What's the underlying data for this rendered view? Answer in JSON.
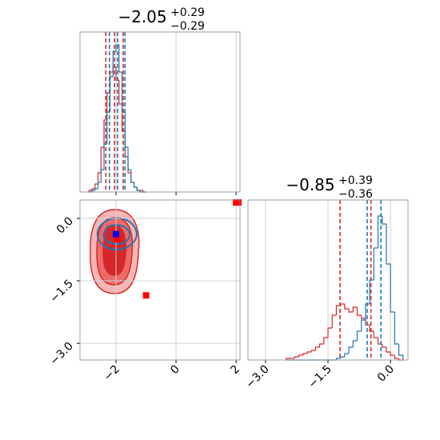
{
  "chart_data": [
    {
      "type": "histogram",
      "title": "−2.05",
      "title_plus": "+0.29",
      "title_minus": "−0.29",
      "xlim": [
        -3.2,
        2.13
      ],
      "ylim": [
        0,
        100
      ],
      "xticks": [
        -2,
        0,
        2
      ],
      "grid": true,
      "bins": [
        -2.9,
        -2.8,
        -2.7,
        -2.6,
        -2.5,
        -2.4,
        -2.3,
        -2.2,
        -2.1,
        -2.0,
        -1.9,
        -1.8,
        -1.7,
        -1.6,
        -1.5,
        -1.4,
        -1.3,
        -1.2,
        -1.1,
        -1.0
      ],
      "series": [
        {
          "color": "#d62728",
          "values": [
            1,
            2,
            5,
            12,
            28,
            45,
            62,
            75,
            78,
            70,
            55,
            38,
            22,
            12,
            6,
            3,
            1,
            1,
            0
          ],
          "quantiles": [
            -2.34,
            -2.05,
            -1.76
          ]
        },
        {
          "color": "#1f77b4",
          "values": [
            0,
            1,
            2,
            6,
            14,
            30,
            50,
            72,
            88,
            92,
            75,
            50,
            28,
            14,
            6,
            3,
            1,
            0,
            0
          ],
          "quantiles": [
            -2.22,
            -1.95,
            -1.7
          ]
        }
      ]
    },
    {
      "type": "scatter",
      "xlim": [
        -3.2,
        2.13
      ],
      "ylim": [
        -3.4,
        0.44
      ],
      "grid": true,
      "xticks": [
        {
          "value": -2,
          "label": "−2"
        },
        0,
        2
      ],
      "yticks": [
        {
          "value": 0,
          "label": "0.0"
        },
        {
          "value": -1.5,
          "label": "−1.5"
        },
        {
          "value": -3,
          "label": "−3.0"
        }
      ],
      "series": [
        {
          "color": "#ff0000",
          "x": [
            -1.0,
            2.0,
            2.08,
            -1.95
          ],
          "y": [
            -1.85,
            0.38,
            0.38,
            -0.5
          ]
        },
        {
          "color": "#0000ff",
          "x": [
            -2.0
          ],
          "y": [
            -0.38
          ]
        }
      ]
    },
    {
      "type": "histogram",
      "title": "−0.85",
      "title_plus": "+0.39",
      "title_minus": "−0.36",
      "xlim": [
        -3.42,
        0.42
      ],
      "ylim": [
        0,
        100
      ],
      "grid": true,
      "xticks": [
        {
          "value": -3,
          "label": "−3.0"
        },
        {
          "value": -1.5,
          "label": "−1.5"
        },
        {
          "value": 0,
          "label": "0.0"
        }
      ],
      "bins": [
        -2.5,
        -2.4,
        -2.3,
        -2.2,
        -2.1,
        -2.0,
        -1.9,
        -1.8,
        -1.7,
        -1.6,
        -1.5,
        -1.4,
        -1.3,
        -1.2,
        -1.1,
        -1.0,
        -0.9,
        -0.8,
        -0.7,
        -0.6,
        -0.5,
        -0.4,
        -0.3,
        -0.2,
        -0.1,
        0.0,
        0.1,
        0.2,
        0.3
      ],
      "series": [
        {
          "color": "#d62728",
          "values": [
            1,
            1,
            2,
            3,
            4,
            5,
            6,
            8,
            10,
            14,
            20,
            28,
            34,
            35,
            32,
            30,
            33,
            28,
            26,
            22,
            18,
            14,
            10,
            8,
            5,
            3,
            1,
            0
          ],
          "quantiles": [
            -1.21,
            -0.47
          ]
        },
        {
          "color": "#1f77b4",
          "values": [
            0,
            0,
            0,
            0,
            0,
            0,
            0,
            0,
            0,
            0,
            0,
            0,
            1,
            2,
            4,
            8,
            12,
            18,
            25,
            35,
            50,
            70,
            90,
            85,
            60,
            30,
            10,
            3
          ],
          "quantiles": [
            -0.56,
            -0.23
          ]
        }
      ]
    }
  ]
}
